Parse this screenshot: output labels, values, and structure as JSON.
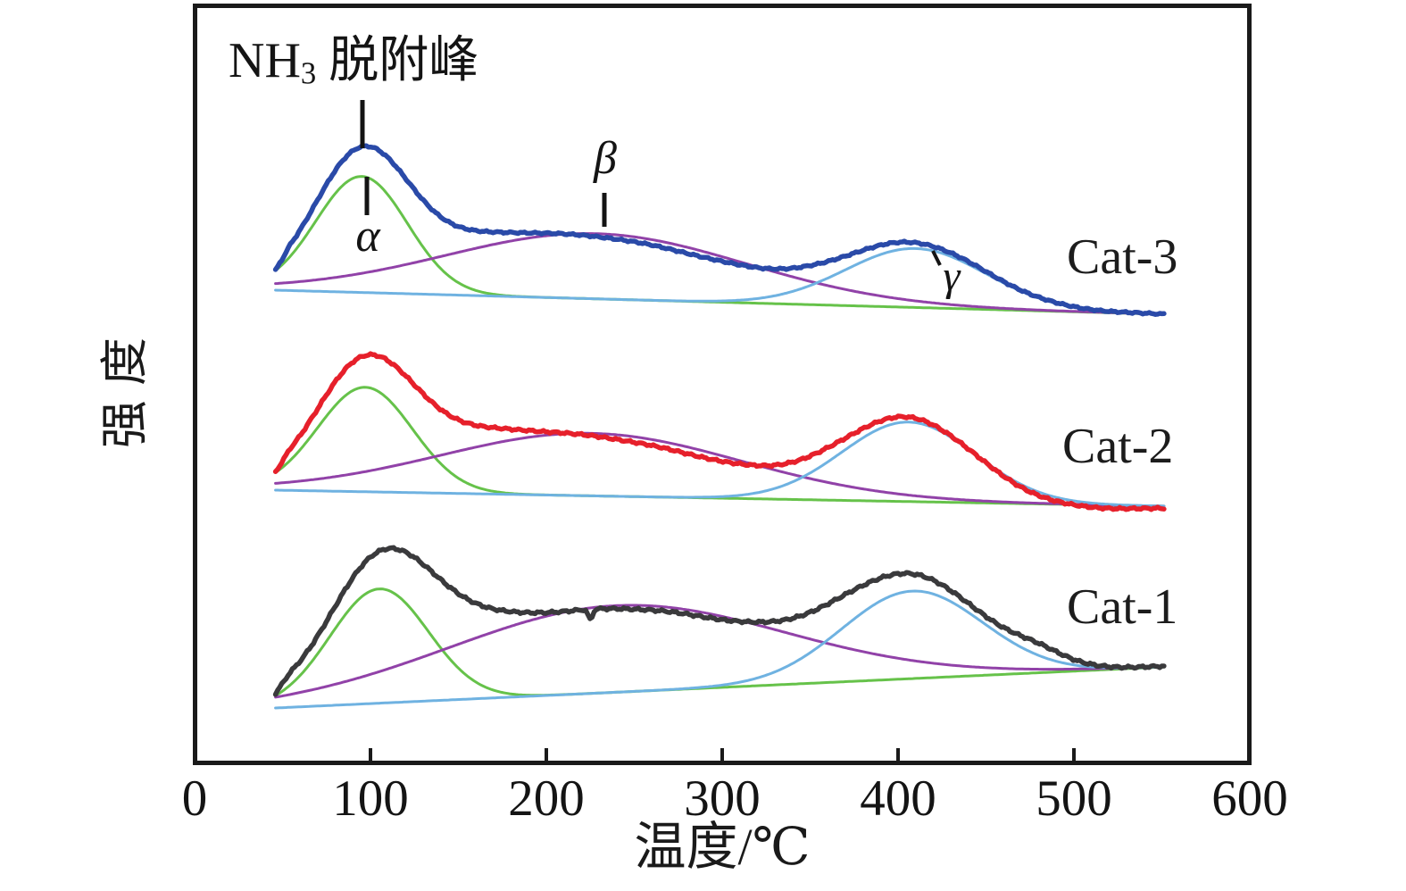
{
  "chart_data": {
    "type": "line",
    "description": "NH3-TPD desorption profiles of three catalysts, each deconvoluted into alpha, beta and gamma Gaussian peaks over a drifting baseline; y-axis is arbitrary intensity (no ticks)",
    "xlabel": "温度/℃",
    "ylabel": "强度",
    "x_axis": {
      "min": 0,
      "max": 600,
      "ticks": [
        0,
        100,
        200,
        300,
        400,
        500,
        600
      ],
      "unit": "℃"
    },
    "y_axis": {
      "label": "强度",
      "tick_labels": [],
      "scale": "arbitrary units"
    },
    "annotations": {
      "main_pre": "NH",
      "main_sub": "3",
      "main_post": " 脱附峰",
      "alpha": "α",
      "beta": "β",
      "gamma": "γ",
      "alpha_peak_temp_c": 95,
      "beta_peak_temp_c": 228,
      "gamma_peak_temp_c": 410
    },
    "series": [
      {
        "name": "Cat-3",
        "row": "top",
        "color": "#2a4aa8",
        "temp_start_c": 46,
        "temp_end_c": 552,
        "baseline": {
          "start_au": 0,
          "end_au": -27
        },
        "noise_au": 1.3,
        "peaks": [
          {
            "label": "alpha",
            "color": "#66c24a",
            "center_c": 95,
            "sigma_c": 26,
            "amplitude_au": 130
          },
          {
            "label": "beta",
            "color": "#9142a8",
            "center_c": 228,
            "sigma_c": 85,
            "amplitude_au": 73
          },
          {
            "label": "gamma",
            "color": "#6fb2e1",
            "center_c": 410,
            "sigma_c": 40,
            "amplitude_au": 66
          }
        ],
        "experimental_extra": [
          {
            "center_c": 88,
            "sigma_c": 28,
            "amplitude_au": 8
          },
          {
            "center_c": 150,
            "sigma_c": 35,
            "amplitude_au": 15
          },
          {
            "center_c": 285,
            "sigma_c": 60,
            "amplitude_au": -7
          }
        ]
      },
      {
        "name": "Cat-2",
        "row": "middle",
        "color": "#e6202b",
        "temp_start_c": 46,
        "temp_end_c": 552,
        "baseline": {
          "start_au": 0,
          "end_au": -18
        },
        "noise_au": 1.6,
        "peaks": [
          {
            "label": "alpha",
            "color": "#66c24a",
            "center_c": 97,
            "sigma_c": 27,
            "amplitude_au": 117
          },
          {
            "label": "beta",
            "color": "#9142a8",
            "center_c": 225,
            "sigma_c": 85,
            "amplitude_au": 70
          },
          {
            "label": "gamma",
            "color": "#6fb2e1",
            "center_c": 406,
            "sigma_c": 38,
            "amplitude_au": 89
          }
        ],
        "experimental_extra": [
          {
            "center_c": 88,
            "sigma_c": 28,
            "amplitude_au": 8
          },
          {
            "center_c": 150,
            "sigma_c": 35,
            "amplitude_au": 18
          },
          {
            "center_c": 290,
            "sigma_c": 60,
            "amplitude_au": -8
          },
          {
            "center_c": 500,
            "sigma_c": 45,
            "amplitude_au": -5
          }
        ]
      },
      {
        "name": "Cat-1",
        "row": "bottom",
        "color": "#3a3a3c",
        "temp_start_c": 46,
        "temp_end_c": 552,
        "baseline": {
          "start_au": 0,
          "end_au": 46
        },
        "noise_au": 1.8,
        "peaks": [
          {
            "label": "alpha",
            "color": "#66c24a",
            "center_c": 105,
            "sigma_c": 28,
            "amplitude_au": 128
          },
          {
            "label": "beta",
            "color": "#9142a8",
            "center_c": 240,
            "sigma_c": 95,
            "amplitude_au": 97
          },
          {
            "label": "gamma",
            "color": "#6fb2e1",
            "center_c": 408,
            "sigma_c": 40,
            "amplitude_au": 98
          }
        ],
        "experimental_extra": [
          {
            "center_c": 150,
            "sigma_c": 30,
            "amplitude_au": 22
          },
          {
            "center_c": 300,
            "sigma_c": 60,
            "amplitude_au": -6
          },
          {
            "center_c": 480,
            "sigma_c": 14,
            "amplitude_au": 10
          },
          {
            "center_c": 225,
            "sigma_c": 1.2,
            "amplitude_au": -12
          }
        ]
      }
    ]
  }
}
